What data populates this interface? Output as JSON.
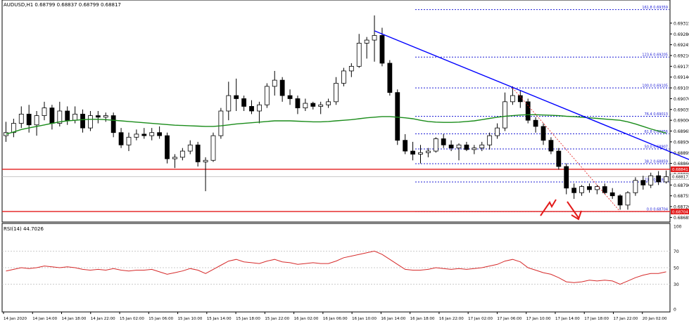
{
  "window": {
    "symbol_line": "AUDUSD,H1  0.68799 0.68837 0.68799 0.68817",
    "rsi_label": "RSI(14) 44.7026"
  },
  "colors": {
    "bull_candle": "#ffffff",
    "bear_candle": "#000000",
    "ma": "#1a8c1a",
    "trendline": "#0000ff",
    "fib": "#1f1fd6",
    "support": "#e31b1b",
    "rsi": "#d62a2a",
    "arrow": "#e31b1b"
  },
  "chart_data": [
    {
      "type": "candlestick",
      "title": "",
      "y_axis_ticks": [
        "0.69385",
        "0.69315",
        "0.69280",
        "0.69245",
        "0.69210",
        "0.69175",
        "0.69140",
        "0.69105",
        "0.69070",
        "0.69035",
        "0.69000",
        "0.68965",
        "0.68930",
        "0.68895",
        "0.68860",
        "0.68825",
        "0.68790",
        "0.68755",
        "0.68720",
        "0.68685"
      ],
      "x_axis_ticks": [
        "14 Jan 2020",
        "14 Jan 14:00",
        "14 Jan 18:00",
        "14 Jan 22:00",
        "15 Jan 02:00",
        "15 Jan 06:00",
        "15 Jan 10:00",
        "15 Jan 14:00",
        "15 Jan 18:00",
        "15 Jan 22:00",
        "16 Jan 02:00",
        "16 Jan 06:00",
        "16 Jan 10:00",
        "16 Jan 14:00",
        "16 Jan 18:00",
        "16 Jan 22:00",
        "17 Jan 02:00",
        "17 Jan 06:00",
        "17 Jan 10:00",
        "17 Jan 14:00",
        "17 Jan 18:00",
        "17 Jan 22:00",
        "20 Jan 02:00"
      ],
      "ylim": [
        0.6867,
        0.6939
      ],
      "candles": [
        [
          0.6895,
          0.68995,
          0.6893,
          0.6896
        ],
        [
          0.6896,
          0.69005,
          0.68945,
          0.6899
        ],
        [
          0.6899,
          0.69045,
          0.68975,
          0.6902
        ],
        [
          0.6902,
          0.6905,
          0.6896,
          0.68985
        ],
        [
          0.68985,
          0.6903,
          0.6895,
          0.69015
        ],
        [
          0.69015,
          0.6906,
          0.69,
          0.6904
        ],
        [
          0.6904,
          0.6905,
          0.6897,
          0.6899
        ],
        [
          0.6899,
          0.6906,
          0.6898,
          0.6903
        ],
        [
          0.6903,
          0.69045,
          0.68985,
          0.69
        ],
        [
          0.69,
          0.69045,
          0.6899,
          0.6902
        ],
        [
          0.6902,
          0.69035,
          0.6896,
          0.68975
        ],
        [
          0.68975,
          0.6903,
          0.68965,
          0.69015
        ],
        [
          0.69015,
          0.6903,
          0.6899,
          0.6901
        ],
        [
          0.6901,
          0.69025,
          0.68995,
          0.69015
        ],
        [
          0.69015,
          0.69025,
          0.68945,
          0.6896
        ],
        [
          0.6896,
          0.68975,
          0.6891,
          0.6892
        ],
        [
          0.6892,
          0.6896,
          0.689,
          0.68945
        ],
        [
          0.68945,
          0.6897,
          0.68935,
          0.68955
        ],
        [
          0.68955,
          0.68975,
          0.6894,
          0.6895
        ],
        [
          0.6895,
          0.68975,
          0.68935,
          0.6896
        ],
        [
          0.6896,
          0.6898,
          0.6894,
          0.6895
        ],
        [
          0.6895,
          0.6896,
          0.6886,
          0.68875
        ],
        [
          0.68875,
          0.6889,
          0.68845,
          0.6888
        ],
        [
          0.6888,
          0.6891,
          0.6887,
          0.689
        ],
        [
          0.689,
          0.68935,
          0.6889,
          0.6892
        ],
        [
          0.6892,
          0.6893,
          0.6885,
          0.68865
        ],
        [
          0.68865,
          0.6888,
          0.6877,
          0.6887
        ],
        [
          0.6887,
          0.6896,
          0.68865,
          0.6895
        ],
        [
          0.6895,
          0.6904,
          0.6894,
          0.6903
        ],
        [
          0.6903,
          0.69125,
          0.69,
          0.6908
        ],
        [
          0.6908,
          0.69135,
          0.6903,
          0.6907
        ],
        [
          0.6907,
          0.6908,
          0.6903,
          0.69045
        ],
        [
          0.69045,
          0.69065,
          0.6902,
          0.6903
        ],
        [
          0.6903,
          0.6906,
          0.6899,
          0.6905
        ],
        [
          0.6905,
          0.6912,
          0.6904,
          0.6911
        ],
        [
          0.6911,
          0.6916,
          0.6908,
          0.6913
        ],
        [
          0.6913,
          0.6914,
          0.6906,
          0.6908
        ],
        [
          0.6908,
          0.691,
          0.6905,
          0.6907
        ],
        [
          0.6907,
          0.6908,
          0.6902,
          0.6904
        ],
        [
          0.6904,
          0.6907,
          0.6903,
          0.69055
        ],
        [
          0.69055,
          0.6906,
          0.69035,
          0.69045
        ],
        [
          0.69045,
          0.6906,
          0.6902,
          0.6905
        ],
        [
          0.6905,
          0.6907,
          0.6904,
          0.6906
        ],
        [
          0.6906,
          0.6914,
          0.6905,
          0.6912
        ],
        [
          0.6912,
          0.6917,
          0.6911,
          0.6916
        ],
        [
          0.6916,
          0.69185,
          0.6914,
          0.69175
        ],
        [
          0.69175,
          0.6928,
          0.6917,
          0.6925
        ],
        [
          0.6925,
          0.6927,
          0.692,
          0.6926
        ],
        [
          0.6926,
          0.6934,
          0.6919,
          0.69275
        ],
        [
          0.69275,
          0.693,
          0.69175,
          0.69185
        ],
        [
          0.69185,
          0.69195,
          0.6908,
          0.6909
        ],
        [
          0.6909,
          0.691,
          0.6892,
          0.68935
        ],
        [
          0.68935,
          0.68955,
          0.6889,
          0.689
        ],
        [
          0.689,
          0.6893,
          0.6887,
          0.6889
        ],
        [
          0.6889,
          0.6892,
          0.6886,
          0.68895
        ],
        [
          0.68895,
          0.6891,
          0.6888,
          0.689
        ],
        [
          0.689,
          0.68945,
          0.68895,
          0.6894
        ],
        [
          0.6894,
          0.68955,
          0.6891,
          0.6892
        ],
        [
          0.6892,
          0.68935,
          0.689,
          0.6891
        ],
        [
          0.6891,
          0.68925,
          0.6887,
          0.6892
        ],
        [
          0.6892,
          0.6893,
          0.689,
          0.68905
        ],
        [
          0.68905,
          0.6892,
          0.6889,
          0.6891
        ],
        [
          0.6891,
          0.6893,
          0.689,
          0.6892
        ],
        [
          0.6892,
          0.6896,
          0.68905,
          0.6895
        ],
        [
          0.6895,
          0.6899,
          0.6894,
          0.68975
        ],
        [
          0.68975,
          0.6909,
          0.68965,
          0.6906
        ],
        [
          0.6906,
          0.6911,
          0.6905,
          0.6908
        ],
        [
          0.6908,
          0.69095,
          0.6904,
          0.6906
        ],
        [
          0.6906,
          0.6907,
          0.6899,
          0.69
        ],
        [
          0.69,
          0.6901,
          0.6896,
          0.6898
        ],
        [
          0.6898,
          0.6899,
          0.6892,
          0.68935
        ],
        [
          0.68935,
          0.68945,
          0.6889,
          0.689
        ],
        [
          0.689,
          0.6891,
          0.6884,
          0.6885
        ],
        [
          0.6885,
          0.6886,
          0.6876,
          0.6878
        ],
        [
          0.6878,
          0.68795,
          0.68745,
          0.68765
        ],
        [
          0.68765,
          0.6879,
          0.68755,
          0.68785
        ],
        [
          0.68785,
          0.68795,
          0.68765,
          0.68775
        ],
        [
          0.68775,
          0.6879,
          0.6876,
          0.68785
        ],
        [
          0.68785,
          0.68795,
          0.6876,
          0.68765
        ],
        [
          0.68765,
          0.6878,
          0.68745,
          0.68755
        ],
        [
          0.68755,
          0.6876,
          0.6871,
          0.68725
        ],
        [
          0.68725,
          0.6877,
          0.6871,
          0.68765
        ],
        [
          0.68765,
          0.68815,
          0.68755,
          0.68805
        ],
        [
          0.68805,
          0.6882,
          0.68775,
          0.6879
        ],
        [
          0.6879,
          0.6883,
          0.6878,
          0.6882
        ],
        [
          0.6882,
          0.68835,
          0.6879,
          0.688
        ],
        [
          0.688,
          0.68837,
          0.68795,
          0.68817
        ]
      ],
      "moving_average": [
        0.68955,
        0.68962,
        0.6897,
        0.68975,
        0.6898,
        0.68985,
        0.6899,
        0.68995,
        0.68998,
        0.69,
        0.69002,
        0.69003,
        0.69003,
        0.69002,
        0.69,
        0.68998,
        0.68996,
        0.68994,
        0.68992,
        0.6899,
        0.68988,
        0.68986,
        0.68984,
        0.68983,
        0.68982,
        0.68981,
        0.6898,
        0.6898,
        0.68982,
        0.68985,
        0.68988,
        0.6899,
        0.68992,
        0.68994,
        0.68996,
        0.68998,
        0.68998,
        0.68998,
        0.68997,
        0.68996,
        0.68995,
        0.68995,
        0.68996,
        0.68998,
        0.69,
        0.69002,
        0.69005,
        0.69008,
        0.6901,
        0.69012,
        0.69012,
        0.6901,
        0.69008,
        0.69005,
        0.69,
        0.68996,
        0.68994,
        0.68993,
        0.68993,
        0.68994,
        0.68996,
        0.68998,
        0.69002,
        0.69006,
        0.6901,
        0.69013,
        0.69015,
        0.69017,
        0.69018,
        0.69018,
        0.69017,
        0.69016,
        0.69015,
        0.69013,
        0.69012,
        0.6901,
        0.69008,
        0.69006,
        0.69004,
        0.69002,
        0.69,
        0.68995,
        0.68988,
        0.6898,
        0.68972,
        0.68965,
        0.68958
      ],
      "trendline": {
        "from_index": 48,
        "from_price": 0.6929,
        "to_index": 92,
        "to_price": 0.68855
      },
      "support_lines": [
        0.68841,
        0.68704
      ],
      "price_tags": [
        {
          "label": "0.68841",
          "price": 0.68841
        },
        {
          "label": "0.68817",
          "price": 0.68817
        },
        {
          "label": "0.68704",
          "price": 0.68704
        }
      ],
      "fib_levels": [
        {
          "label": "161.8 0.69359",
          "price": 0.69359
        },
        {
          "label": "123.6 0.69205",
          "price": 0.69205
        },
        {
          "label": "100.0 0.69105",
          "price": 0.69105
        },
        {
          "label": "76.4 0.69013",
          "price": 0.69013
        },
        {
          "label": "61.8 0.68956",
          "price": 0.68956
        },
        {
          "label": "50.0 0.68907",
          "price": 0.68907
        },
        {
          "label": "38.2 0.68859",
          "price": 0.68859
        },
        {
          "label": "23.6 0.68800",
          "price": 0.688
        },
        {
          "label": "0.0 0.68704",
          "price": 0.68704
        }
      ]
    },
    {
      "type": "line",
      "title": "",
      "y_axis_ticks": [
        "100",
        "70",
        "50",
        "30",
        "0"
      ],
      "ylim": [
        0,
        100
      ],
      "levels": [
        70,
        50,
        30
      ],
      "series": [
        {
          "name": "RSI(14)",
          "values": [
            46,
            48,
            50,
            49,
            50,
            52,
            51,
            50,
            51,
            50,
            48,
            47,
            48,
            47,
            49,
            47,
            46,
            47,
            47,
            48,
            45,
            42,
            44,
            46,
            49,
            47,
            43,
            48,
            53,
            58,
            60,
            57,
            56,
            55,
            58,
            60,
            57,
            56,
            54,
            55,
            56,
            55,
            55,
            58,
            62,
            64,
            66,
            68,
            70,
            66,
            60,
            54,
            48,
            47,
            47,
            48,
            50,
            49,
            48,
            49,
            48,
            49,
            50,
            52,
            54,
            58,
            60,
            57,
            50,
            47,
            44,
            42,
            38,
            33,
            32,
            33,
            35,
            34,
            35,
            34,
            30,
            34,
            38,
            41,
            43,
            43,
            45
          ]
        }
      ]
    }
  ]
}
